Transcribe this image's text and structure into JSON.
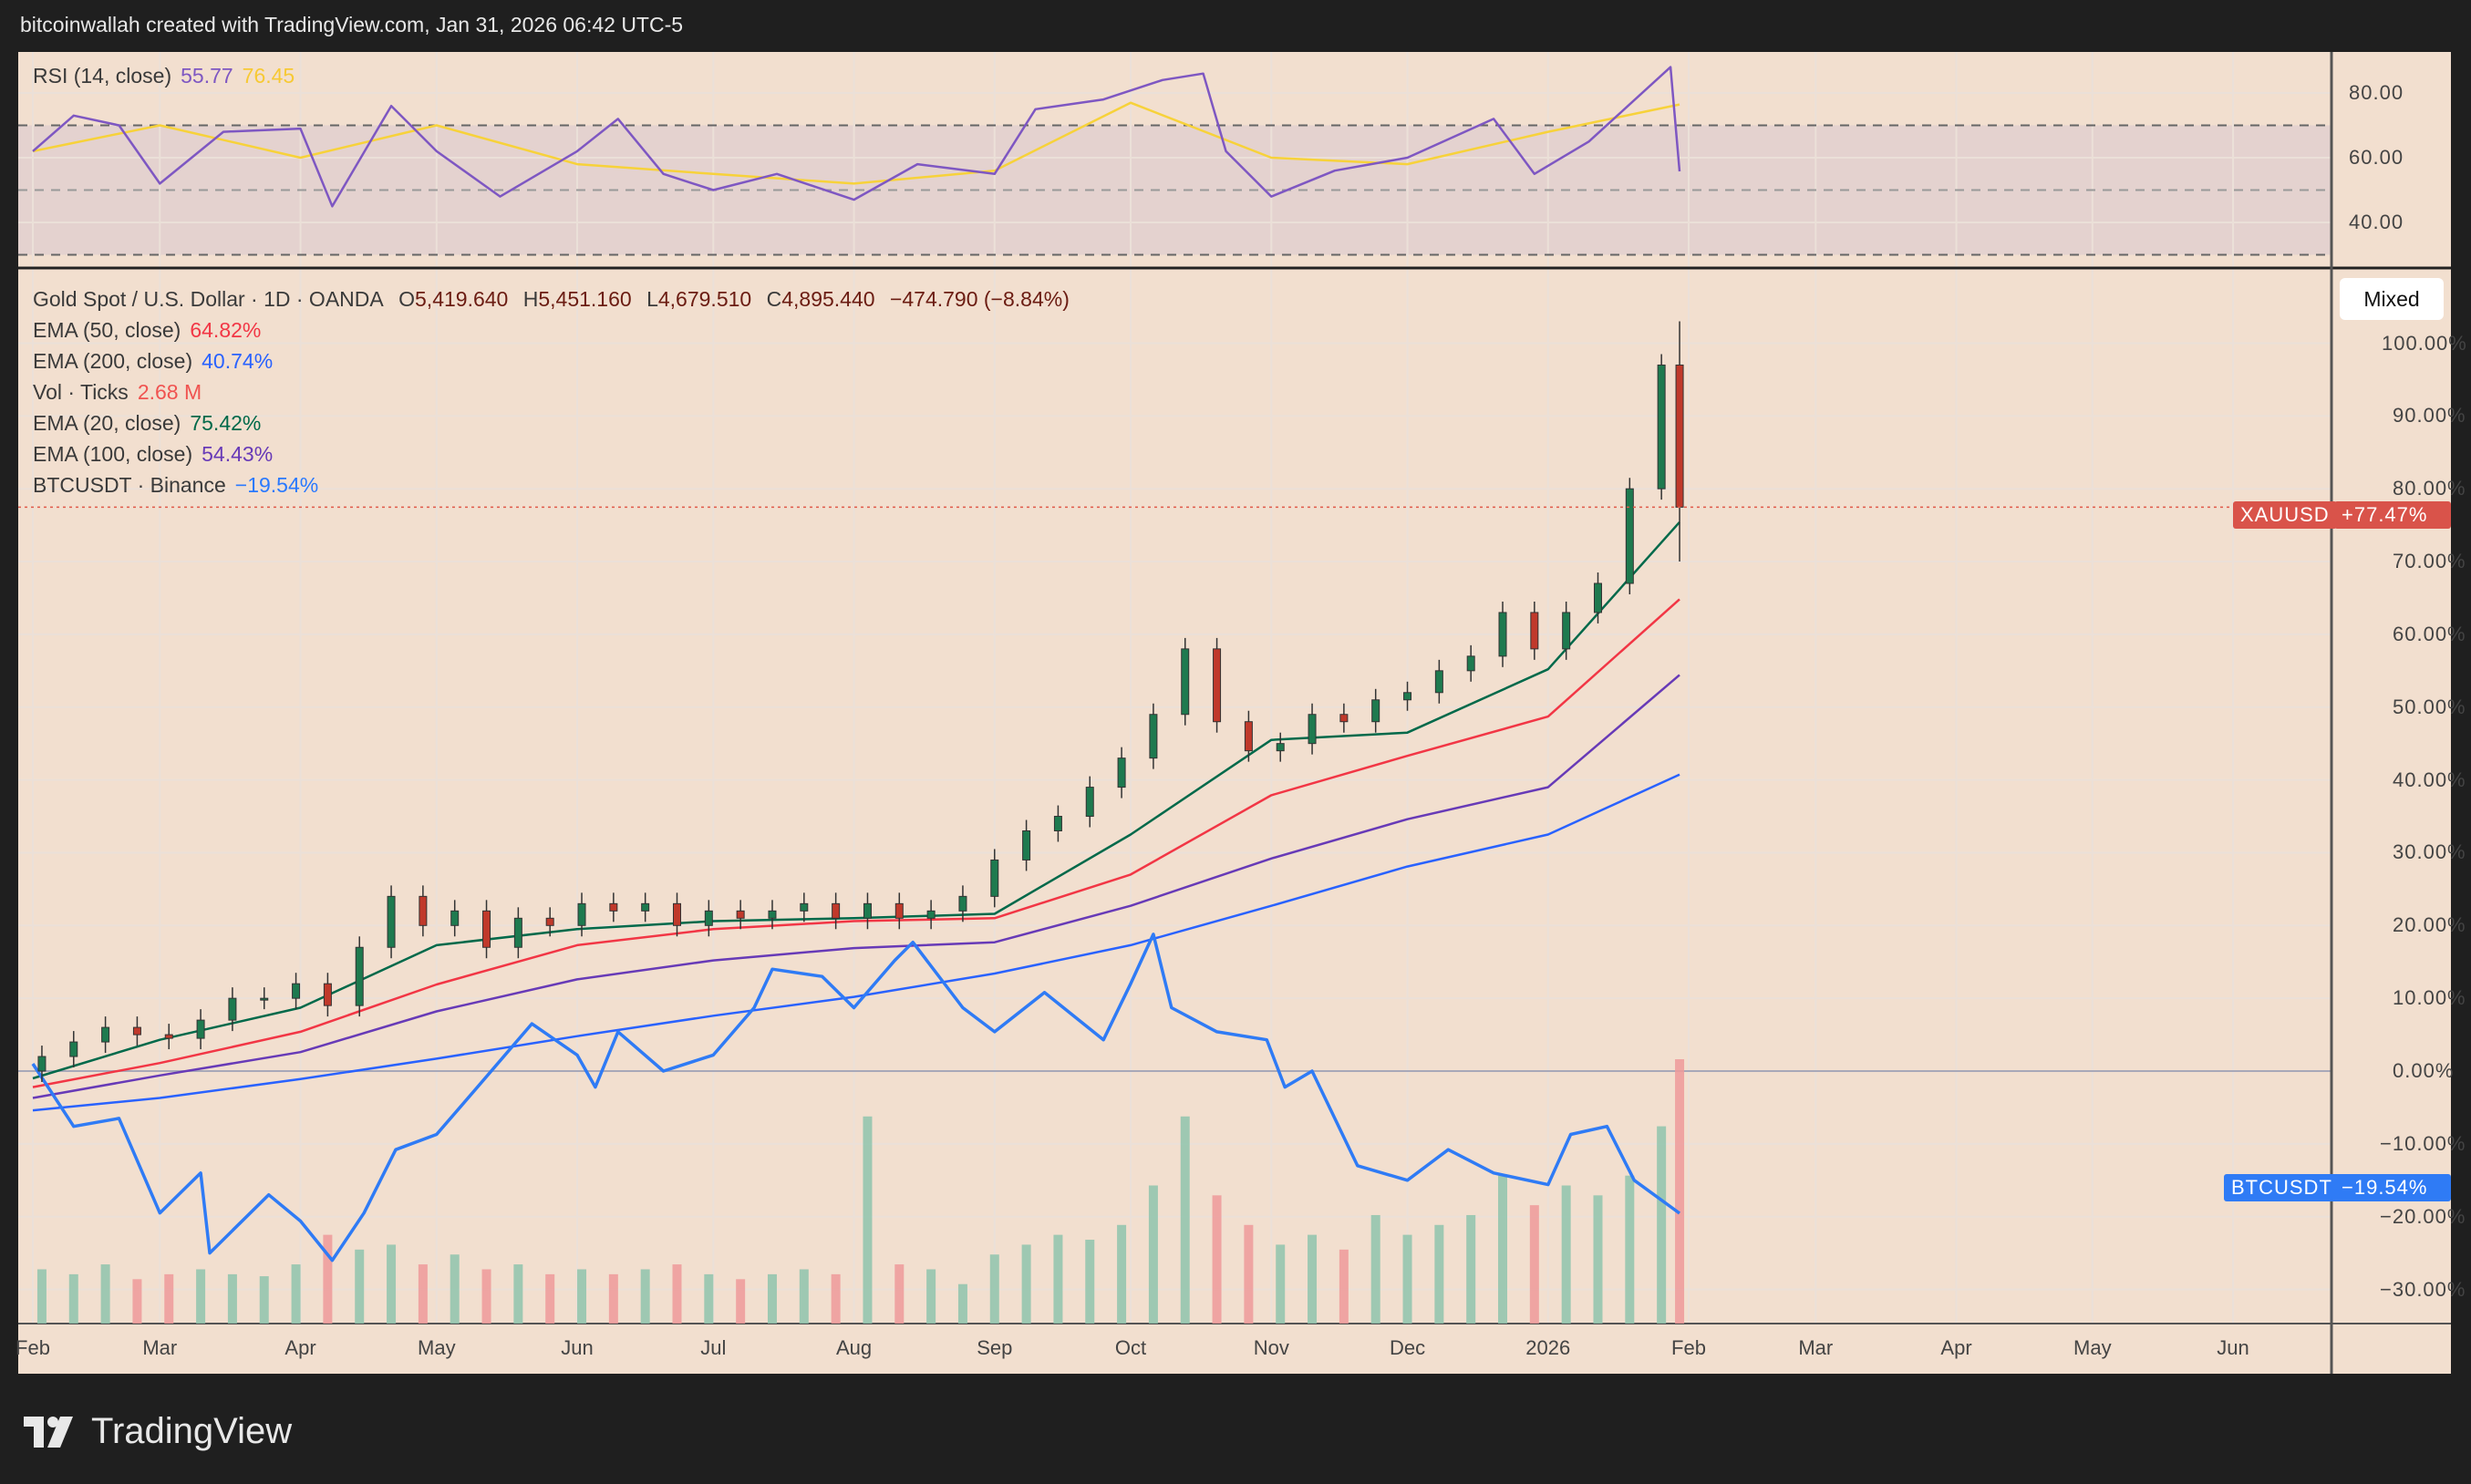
{
  "header": {
    "attribution": "bitcoinwallah created with TradingView.com, Jan 31, 2026 06:42 UTC-5"
  },
  "rsi_legend": {
    "name": "RSI (14, close)",
    "value": "55.77",
    "ma_value": "76.45"
  },
  "main_legend": {
    "symbol": "Gold Spot / U.S. Dollar · 1D · OANDA",
    "open_label": "O",
    "open": "5,419.640",
    "high_label": "H",
    "high": "5,451.160",
    "low_label": "L",
    "low": "4,679.510",
    "close_label": "C",
    "close": "4,895.440",
    "change": "−474.790 (−8.84%)",
    "indicators": [
      {
        "name": "EMA (50, close)",
        "value": "64.82%",
        "color": "#f23645"
      },
      {
        "name": "EMA (200, close)",
        "value": "40.74%",
        "color": "#2962ff"
      },
      {
        "name": "Vol · Ticks",
        "value": "2.68 M",
        "color": "#f05350"
      },
      {
        "name": "EMA (20, close)",
        "value": "75.42%",
        "color": "#00694a"
      },
      {
        "name": "EMA (100, close)",
        "value": "54.43%",
        "color": "#673ab7"
      },
      {
        "name": "BTCUSDT · Binance",
        "value": "−19.54%",
        "color": "#2979ff"
      }
    ]
  },
  "scale_mode_button": "Mixed",
  "price_tags": {
    "xauusd": {
      "label": "XAUUSD",
      "value": "+77.47%",
      "color": "#d9534a"
    },
    "btcusdt": {
      "label": "BTCUSDT",
      "value": "−19.54%",
      "color": "#2f7bf5"
    }
  },
  "branding": {
    "logo_text": "TradingView"
  },
  "chart_data": [
    {
      "type": "line",
      "pane": "rsi",
      "y_ticks": [
        "80.00",
        "60.00",
        "40.00"
      ],
      "y_tick_values": [
        80,
        60,
        40
      ],
      "levels": [
        70,
        50,
        30
      ],
      "ylim": [
        26,
        93
      ],
      "series": [
        {
          "name": "RSI (14, close)",
          "color": "#7e57c2",
          "x": [
            "2025-02-01",
            "2025-02-10",
            "2025-02-20",
            "2025-03-01",
            "2025-03-15",
            "2025-04-01",
            "2025-04-08",
            "2025-04-21",
            "2025-05-01",
            "2025-05-15",
            "2025-06-01",
            "2025-06-10",
            "2025-06-20",
            "2025-07-01",
            "2025-07-15",
            "2025-08-01",
            "2025-08-15",
            "2025-09-01",
            "2025-09-10",
            "2025-09-25",
            "2025-10-08",
            "2025-10-17",
            "2025-10-22",
            "2025-11-01",
            "2025-11-15",
            "2025-12-01",
            "2025-12-20",
            "2025-12-29",
            "2026-01-10",
            "2026-01-28",
            "2026-01-30"
          ],
          "y": [
            62,
            73,
            70,
            52,
            68,
            69,
            45,
            76,
            62,
            48,
            62,
            72,
            55,
            50,
            55,
            47,
            58,
            55,
            75,
            78,
            84,
            86,
            62,
            48,
            56,
            60,
            72,
            55,
            65,
            88,
            55.77
          ]
        },
        {
          "name": "RSI MA",
          "color": "#f7d23a",
          "x": [
            "2025-02-01",
            "2025-03-01",
            "2025-04-01",
            "2025-05-01",
            "2025-06-01",
            "2025-07-01",
            "2025-08-01",
            "2025-09-01",
            "2025-10-01",
            "2025-11-01",
            "2025-12-01",
            "2026-01-01",
            "2026-01-30"
          ],
          "y": [
            62,
            70,
            60,
            70,
            58,
            55,
            52,
            56,
            77,
            60,
            58,
            68,
            76.45
          ]
        }
      ]
    },
    {
      "type": "candlestick",
      "pane": "main",
      "y_unit": "%",
      "y_ticks": [
        "100.00%",
        "90.00%",
        "80.00%",
        "70.00%",
        "60.00%",
        "50.00%",
        "40.00%",
        "30.00%",
        "20.00%",
        "10.00%",
        "0.00%",
        "−10.00%",
        "−20.00%",
        "−30.00%"
      ],
      "y_tick_values": [
        100,
        90,
        80,
        70,
        60,
        50,
        40,
        30,
        20,
        10,
        0,
        -10,
        -20,
        -30
      ],
      "x_ticks": [
        "Feb",
        "Mar",
        "Apr",
        "May",
        "Jun",
        "Jul",
        "Aug",
        "Sep",
        "Oct",
        "Nov",
        "Dec",
        "2026",
        "Feb",
        "Mar",
        "Apr",
        "May",
        "Jun"
      ],
      "x_tick_dates": [
        "2025-02-01",
        "2025-03-01",
        "2025-04-01",
        "2025-05-01",
        "2025-06-01",
        "2025-07-01",
        "2025-08-01",
        "2025-09-01",
        "2025-10-01",
        "2025-11-01",
        "2025-12-01",
        "2026-01-01",
        "2026-02-01",
        "2026-03-01",
        "2026-04-01",
        "2026-05-01",
        "2026-06-01"
      ],
      "gold": {
        "name": "XAUUSD",
        "x": [
          "2025-02-03",
          "2025-02-10",
          "2025-02-17",
          "2025-02-24",
          "2025-03-03",
          "2025-03-10",
          "2025-03-17",
          "2025-03-24",
          "2025-03-31",
          "2025-04-07",
          "2025-04-14",
          "2025-04-21",
          "2025-04-28",
          "2025-05-05",
          "2025-05-12",
          "2025-05-19",
          "2025-05-26",
          "2025-06-02",
          "2025-06-09",
          "2025-06-16",
          "2025-06-23",
          "2025-06-30",
          "2025-07-07",
          "2025-07-14",
          "2025-07-21",
          "2025-07-28",
          "2025-08-04",
          "2025-08-11",
          "2025-08-18",
          "2025-08-25",
          "2025-09-01",
          "2025-09-08",
          "2025-09-15",
          "2025-09-22",
          "2025-09-29",
          "2025-10-06",
          "2025-10-13",
          "2025-10-20",
          "2025-10-27",
          "2025-11-03",
          "2025-11-10",
          "2025-11-17",
          "2025-11-24",
          "2025-12-01",
          "2025-12-08",
          "2025-12-15",
          "2025-12-22",
          "2025-12-29",
          "2026-01-05",
          "2026-01-12",
          "2026-01-19",
          "2026-01-26",
          "2026-01-30"
        ],
        "close": [
          2,
          4,
          6,
          5,
          4.5,
          7,
          10,
          10,
          12,
          9,
          17,
          24,
          20,
          22,
          17,
          21,
          20,
          23,
          22,
          23,
          20,
          22,
          21,
          22,
          23,
          21,
          23,
          21,
          22,
          24,
          29,
          33,
          35,
          39,
          43,
          49,
          58,
          48,
          44,
          45,
          49,
          48,
          51,
          52,
          55,
          57,
          63,
          58,
          63,
          67,
          80,
          97,
          77.47
        ],
        "last_high": 103,
        "last_low": 70,
        "up_color": "#1e7a4f",
        "down_color": "#c0392b"
      },
      "ema": [
        {
          "name": "EMA (20, close)",
          "color": "#00694a",
          "x": [
            "2025-02-01",
            "2025-03-01",
            "2025-04-01",
            "2025-05-01",
            "2025-06-01",
            "2025-07-01",
            "2025-08-01",
            "2025-09-01",
            "2025-10-01",
            "2025-11-01",
            "2025-12-01",
            "2026-01-01",
            "2026-01-30"
          ],
          "y": [
            -1,
            4.3,
            8.7,
            17.3,
            19.5,
            20.6,
            21,
            21.6,
            32.5,
            45.5,
            46.5,
            55.2,
            75.42
          ]
        },
        {
          "name": "EMA (50, close)",
          "color": "#f23645",
          "x": [
            "2025-02-01",
            "2025-03-01",
            "2025-04-01",
            "2025-05-01",
            "2025-06-01",
            "2025-07-01",
            "2025-08-01",
            "2025-09-01",
            "2025-10-01",
            "2025-11-01",
            "2025-12-01",
            "2026-01-01",
            "2026-01-30"
          ],
          "y": [
            -2.2,
            1.1,
            5.4,
            11.9,
            17.3,
            19.5,
            20.6,
            21,
            27,
            37.9,
            43.3,
            48.7,
            64.82
          ]
        },
        {
          "name": "EMA (100, close)",
          "color": "#673ab7",
          "x": [
            "2025-02-01",
            "2025-03-01",
            "2025-04-01",
            "2025-05-01",
            "2025-06-01",
            "2025-07-01",
            "2025-08-01",
            "2025-09-01",
            "2025-10-01",
            "2025-11-01",
            "2025-12-01",
            "2026-01-01",
            "2026-01-30"
          ],
          "y": [
            -3.7,
            -0.6,
            2.6,
            8.2,
            12.6,
            15.2,
            16.9,
            17.7,
            22.7,
            29.2,
            34.6,
            39,
            54.43
          ]
        },
        {
          "name": "EMA (200, close)",
          "color": "#2962ff",
          "x": [
            "2025-02-01",
            "2025-03-01",
            "2025-04-01",
            "2025-05-01",
            "2025-06-01",
            "2025-07-01",
            "2025-08-01",
            "2025-09-01",
            "2025-10-01",
            "2025-11-01",
            "2025-12-01",
            "2026-01-01",
            "2026-01-30"
          ],
          "y": [
            -5.4,
            -3.7,
            -1.1,
            1.7,
            4.8,
            7.6,
            10.2,
            13.4,
            17.3,
            22.7,
            28.1,
            32.5,
            40.74
          ]
        }
      ],
      "btc": {
        "name": "BTCUSDT",
        "color": "#2f7bf5",
        "x": [
          "2025-02-01",
          "2025-02-10",
          "2025-02-20",
          "2025-03-01",
          "2025-03-10",
          "2025-03-12",
          "2025-03-25",
          "2025-04-01",
          "2025-04-08",
          "2025-04-15",
          "2025-04-22",
          "2025-05-01",
          "2025-05-10",
          "2025-05-22",
          "2025-06-01",
          "2025-06-05",
          "2025-06-10",
          "2025-06-20",
          "2025-07-01",
          "2025-07-10",
          "2025-07-14",
          "2025-07-25",
          "2025-08-01",
          "2025-08-10",
          "2025-08-14",
          "2025-08-25",
          "2025-09-01",
          "2025-09-12",
          "2025-09-25",
          "2025-10-01",
          "2025-10-06",
          "2025-10-10",
          "2025-10-20",
          "2025-10-31",
          "2025-11-04",
          "2025-11-10",
          "2025-11-20",
          "2025-12-01",
          "2025-12-10",
          "2025-12-20",
          "2026-01-01",
          "2026-01-06",
          "2026-01-14",
          "2026-01-20",
          "2026-01-30"
        ],
        "y": [
          1,
          -7.6,
          -6.5,
          -19.5,
          -14,
          -25,
          -17,
          -20.6,
          -26,
          -19.5,
          -10.8,
          -8.7,
          -2.2,
          6.5,
          2.2,
          -2.2,
          5.4,
          0,
          2.2,
          8.7,
          14,
          13,
          8.7,
          15.2,
          17.7,
          8.7,
          5.4,
          10.8,
          4.3,
          12,
          18.8,
          8.7,
          5.4,
          4.3,
          -2.2,
          0,
          -13,
          -15,
          -10.8,
          -14,
          -15.6,
          -8.7,
          -7.6,
          -15,
          -19.54
        ]
      },
      "volume": {
        "name": "Vol · Ticks",
        "unit": "M",
        "values": [
          0.55,
          0.5,
          0.6,
          0.45,
          0.5,
          0.55,
          0.5,
          0.48,
          0.6,
          0.9,
          0.75,
          0.8,
          0.6,
          0.7,
          0.55,
          0.6,
          0.5,
          0.55,
          0.5,
          0.55,
          0.6,
          0.5,
          0.45,
          0.5,
          0.55,
          0.5,
          2.1,
          0.6,
          0.55,
          0.4,
          0.7,
          0.8,
          0.9,
          0.85,
          1.0,
          1.4,
          2.1,
          1.3,
          1.0,
          0.8,
          0.9,
          0.75,
          1.1,
          0.9,
          1.0,
          1.1,
          1.5,
          1.2,
          1.4,
          1.3,
          1.5,
          2.0,
          2.68
        ]
      }
    }
  ]
}
